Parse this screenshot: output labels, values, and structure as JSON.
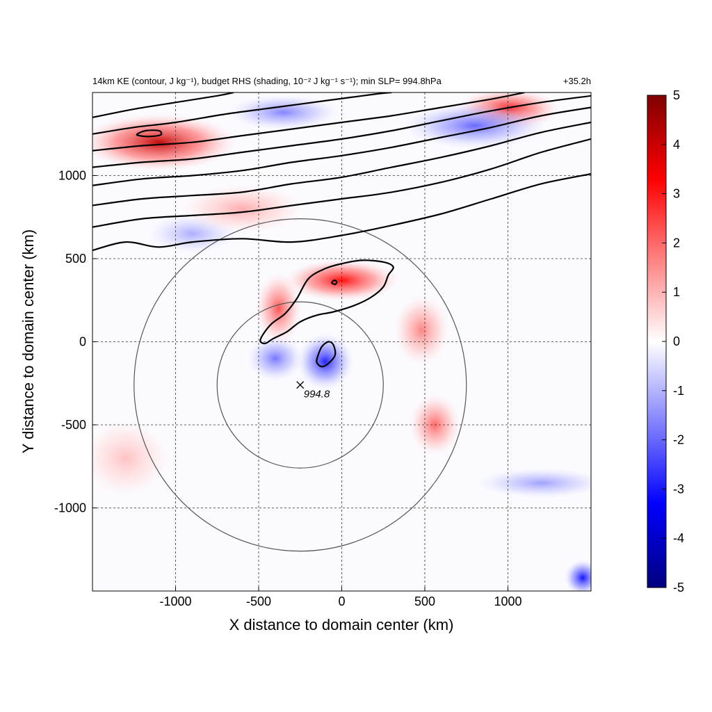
{
  "chart_data": {
    "type": "heatmap",
    "title": "14km KE (contour, J kg⁻¹), budget RHS (shading, 10⁻² J kg⁻¹ s⁻¹); min SLP= 994.8hPa",
    "time_label": "+35.2h",
    "xlabel": "X distance to domain center (km)",
    "ylabel": "Y distance to domain center (km)",
    "xlim": [
      -1500,
      1500
    ],
    "ylim": [
      -1500,
      1500
    ],
    "xticks": [
      -1000,
      -500,
      0,
      500,
      1000
    ],
    "yticks": [
      -1000,
      -500,
      0,
      500,
      1000
    ],
    "xtick_labels": [
      "-1000",
      "-500",
      "0",
      "500",
      "1000"
    ],
    "ytick_labels": [
      "-1000",
      "-500",
      "0",
      "500",
      "1000"
    ],
    "grid": true,
    "colorbar": {
      "range": [
        -5,
        5
      ],
      "ticks": [
        5,
        4,
        3,
        2,
        1,
        0,
        -1,
        -2,
        -3,
        -4,
        -5
      ],
      "tick_labels": [
        "5",
        "4",
        "3",
        "2",
        "1",
        "0",
        "-1",
        "-2",
        "-3",
        "-4",
        "-5"
      ],
      "colormap": [
        "#00007f",
        "#0000ff",
        "#7f7fff",
        "#ffffff",
        "#ff7f7f",
        "#ff0000",
        "#7f0000"
      ]
    },
    "min_slp": {
      "x": -250,
      "y": -260,
      "label": "994.8"
    },
    "circles": [
      {
        "cx": -250,
        "cy": -260,
        "r": 500
      },
      {
        "cx": -250,
        "cy": -260,
        "r": 1000
      }
    ],
    "ke_contours": [
      {
        "name": "jet-1",
        "points": [
          [
            -1500,
            550
          ],
          [
            -1300,
            600
          ],
          [
            -1100,
            570
          ],
          [
            -900,
            600
          ],
          [
            -600,
            620
          ],
          [
            -300,
            600
          ],
          [
            0,
            640
          ],
          [
            300,
            700
          ],
          [
            600,
            770
          ],
          [
            900,
            860
          ],
          [
            1200,
            950
          ],
          [
            1500,
            1010
          ]
        ]
      },
      {
        "name": "jet-2",
        "points": [
          [
            -1500,
            690
          ],
          [
            -1200,
            740
          ],
          [
            -900,
            760
          ],
          [
            -600,
            780
          ],
          [
            -300,
            820
          ],
          [
            0,
            860
          ],
          [
            300,
            900
          ],
          [
            600,
            960
          ],
          [
            900,
            1040
          ],
          [
            1200,
            1140
          ],
          [
            1500,
            1220
          ]
        ]
      },
      {
        "name": "jet-3",
        "points": [
          [
            -1500,
            820
          ],
          [
            -1200,
            860
          ],
          [
            -900,
            880
          ],
          [
            -600,
            900
          ],
          [
            -300,
            950
          ],
          [
            0,
            990
          ],
          [
            300,
            1050
          ],
          [
            600,
            1110
          ],
          [
            900,
            1180
          ],
          [
            1200,
            1260
          ],
          [
            1500,
            1320
          ]
        ]
      },
      {
        "name": "jet-4",
        "points": [
          [
            -1500,
            940
          ],
          [
            -1200,
            980
          ],
          [
            -900,
            1000
          ],
          [
            -600,
            1030
          ],
          [
            -300,
            1080
          ],
          [
            0,
            1120
          ],
          [
            300,
            1170
          ],
          [
            600,
            1230
          ],
          [
            900,
            1290
          ],
          [
            1200,
            1360
          ],
          [
            1500,
            1410
          ]
        ]
      },
      {
        "name": "jet-5",
        "points": [
          [
            -1500,
            1050
          ],
          [
            -1200,
            1080
          ],
          [
            -900,
            1100
          ],
          [
            -600,
            1140
          ],
          [
            -300,
            1180
          ],
          [
            0,
            1220
          ],
          [
            300,
            1270
          ],
          [
            600,
            1330
          ],
          [
            900,
            1390
          ],
          [
            1200,
            1440
          ],
          [
            1500,
            1480
          ]
        ]
      },
      {
        "name": "jet-6",
        "points": [
          [
            -1500,
            1150
          ],
          [
            -1200,
            1180
          ],
          [
            -900,
            1200
          ],
          [
            -600,
            1240
          ],
          [
            -300,
            1280
          ],
          [
            0,
            1320
          ],
          [
            300,
            1360
          ],
          [
            600,
            1410
          ],
          [
            900,
            1460
          ],
          [
            1100,
            1500
          ]
        ]
      },
      {
        "name": "jet-7",
        "points": [
          [
            -1500,
            1250
          ],
          [
            -1250,
            1290
          ],
          [
            -1000,
            1320
          ],
          [
            -700,
            1370
          ],
          [
            -400,
            1410
          ],
          [
            -100,
            1450
          ],
          [
            200,
            1490
          ],
          [
            300,
            1500
          ]
        ]
      },
      {
        "name": "jet-8",
        "points": [
          [
            -1500,
            1350
          ],
          [
            -1250,
            1400
          ],
          [
            -1000,
            1440
          ],
          [
            -750,
            1480
          ],
          [
            -650,
            1500
          ]
        ]
      },
      {
        "name": "storm-outer",
        "closed": true,
        "points": [
          [
            -490,
            5
          ],
          [
            -470,
            50
          ],
          [
            -420,
            110
          ],
          [
            -340,
            170
          ],
          [
            -270,
            260
          ],
          [
            -200,
            380
          ],
          [
            -100,
            440
          ],
          [
            0,
            470
          ],
          [
            120,
            490
          ],
          [
            250,
            480
          ],
          [
            310,
            450
          ],
          [
            280,
            400
          ],
          [
            250,
            330
          ],
          [
            180,
            270
          ],
          [
            80,
            220
          ],
          [
            -50,
            180
          ],
          [
            -150,
            160
          ],
          [
            -250,
            120
          ],
          [
            -330,
            60
          ],
          [
            -410,
            20
          ],
          [
            -460,
            -10
          ]
        ]
      },
      {
        "name": "storm-inner",
        "closed": true,
        "points": [
          [
            -145,
            -90
          ],
          [
            -120,
            -30
          ],
          [
            -80,
            0
          ],
          [
            -50,
            -20
          ],
          [
            -40,
            -80
          ],
          [
            -80,
            -130
          ],
          [
            -120,
            -150
          ],
          [
            -150,
            -125
          ]
        ]
      },
      {
        "name": "storm-tiny",
        "closed": true,
        "points": [
          [
            -60,
            355
          ],
          [
            -45,
            370
          ],
          [
            -30,
            360
          ],
          [
            -40,
            345
          ]
        ]
      },
      {
        "name": "jet-closed",
        "closed": true,
        "points": [
          [
            -1230,
            1250
          ],
          [
            -1180,
            1270
          ],
          [
            -1100,
            1270
          ],
          [
            -1090,
            1245
          ],
          [
            -1160,
            1235
          ],
          [
            -1220,
            1240
          ]
        ]
      }
    ],
    "shading_features": [
      {
        "name": "jet-red-band",
        "sign": "positive",
        "x": -1100,
        "y": 1200,
        "sx": 300,
        "sy": 110,
        "amp": 4.5
      },
      {
        "name": "jet-red-band-2",
        "sign": "positive",
        "x": 1000,
        "y": 1400,
        "sx": 200,
        "sy": 80,
        "amp": 3.5
      },
      {
        "name": "storm-arc-north",
        "sign": "positive",
        "x": 0,
        "y": 370,
        "sx": 220,
        "sy": 80,
        "amp": 4.0
      },
      {
        "name": "storm-arc-west",
        "sign": "positive",
        "x": -380,
        "y": 200,
        "sx": 90,
        "sy": 140,
        "amp": 2.5
      },
      {
        "name": "storm-arc-east",
        "sign": "positive",
        "x": 480,
        "y": 70,
        "sx": 110,
        "sy": 140,
        "amp": 1.8
      },
      {
        "name": "southeast-band",
        "sign": "positive",
        "x": 560,
        "y": -500,
        "sx": 100,
        "sy": 120,
        "amp": 2.2
      },
      {
        "name": "core-negative",
        "sign": "negative",
        "x": -100,
        "y": -120,
        "sx": 110,
        "sy": 110,
        "amp": 3.2
      },
      {
        "name": "core-negative-west",
        "sign": "negative",
        "x": -400,
        "y": -100,
        "sx": 110,
        "sy": 90,
        "amp": 2.0
      },
      {
        "name": "north-negative",
        "sign": "negative",
        "x": 800,
        "y": 1300,
        "sx": 280,
        "sy": 90,
        "amp": 2.2
      },
      {
        "name": "north-negative-2",
        "sign": "negative",
        "x": -350,
        "y": 1380,
        "sx": 220,
        "sy": 70,
        "amp": 1.8
      },
      {
        "name": "east-negative",
        "sign": "negative",
        "x": 1200,
        "y": -850,
        "sx": 260,
        "sy": 60,
        "amp": 1.4
      },
      {
        "name": "corner-negative",
        "sign": "negative",
        "x": 1450,
        "y": -1420,
        "sx": 70,
        "sy": 70,
        "amp": 3.5
      },
      {
        "name": "west-negative",
        "sign": "negative",
        "x": -900,
        "y": 650,
        "sx": 180,
        "sy": 80,
        "amp": 1.2
      },
      {
        "name": "southwest-positive",
        "sign": "positive",
        "x": -1300,
        "y": -700,
        "sx": 180,
        "sy": 160,
        "amp": 0.9
      },
      {
        "name": "mid-positive",
        "sign": "positive",
        "x": -600,
        "y": 800,
        "sx": 250,
        "sy": 100,
        "amp": 1.2
      }
    ]
  }
}
